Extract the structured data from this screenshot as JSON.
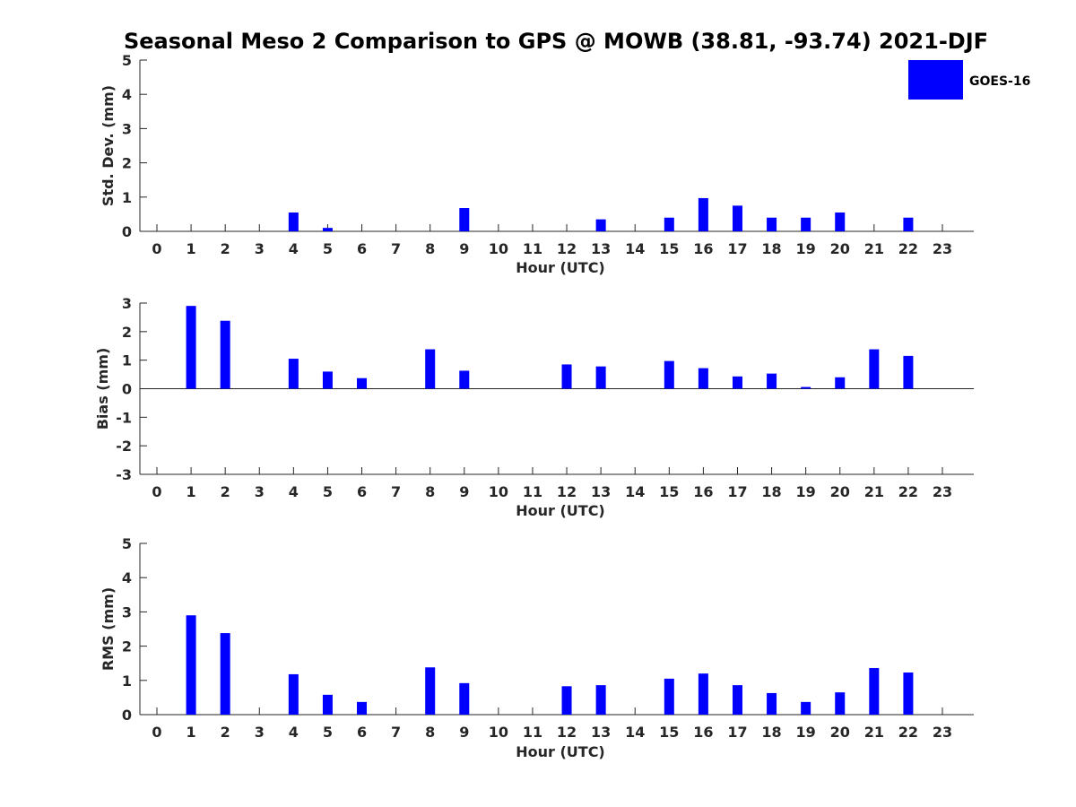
{
  "figure_title": "Seasonal Meso 2 Comparison to GPS @ MOWB (38.81, -93.74) 2021-DJF",
  "legend": {
    "label": "GOES-16",
    "color": "#0000ff"
  },
  "chart_data": [
    {
      "type": "bar",
      "xlabel": "Hour (UTC)",
      "ylabel": "Std. Dev. (mm)",
      "categories": [
        "0",
        "1",
        "2",
        "3",
        "4",
        "5",
        "6",
        "7",
        "8",
        "9",
        "10",
        "11",
        "12",
        "13",
        "14",
        "15",
        "16",
        "17",
        "18",
        "19",
        "20",
        "21",
        "22",
        "23"
      ],
      "ylim": [
        0,
        5
      ],
      "yticks": [
        0,
        1,
        2,
        3,
        4,
        5
      ],
      "series": [
        {
          "name": "GOES-16",
          "color": "#0000ff",
          "values": [
            null,
            null,
            null,
            null,
            0.55,
            0.1,
            null,
            null,
            null,
            0.68,
            null,
            null,
            null,
            0.35,
            null,
            0.4,
            0.97,
            0.75,
            0.4,
            0.4,
            0.55,
            null,
            0.4,
            null
          ]
        }
      ]
    },
    {
      "type": "bar",
      "xlabel": "Hour (UTC)",
      "ylabel": "Bias (mm)",
      "categories": [
        "0",
        "1",
        "2",
        "3",
        "4",
        "5",
        "6",
        "7",
        "8",
        "9",
        "10",
        "11",
        "12",
        "13",
        "14",
        "15",
        "16",
        "17",
        "18",
        "19",
        "20",
        "21",
        "22",
        "23"
      ],
      "ylim": [
        -3,
        3
      ],
      "yticks": [
        -3,
        -2,
        -1,
        0,
        1,
        2,
        3
      ],
      "series": [
        {
          "name": "GOES-16",
          "color": "#0000ff",
          "values": [
            null,
            2.9,
            2.38,
            null,
            1.05,
            0.6,
            0.37,
            null,
            1.38,
            0.63,
            null,
            null,
            0.85,
            0.78,
            null,
            0.97,
            0.72,
            0.43,
            0.53,
            0.06,
            0.4,
            1.38,
            1.15,
            null
          ]
        }
      ]
    },
    {
      "type": "bar",
      "xlabel": "Hour (UTC)",
      "ylabel": "RMS (mm)",
      "categories": [
        "0",
        "1",
        "2",
        "3",
        "4",
        "5",
        "6",
        "7",
        "8",
        "9",
        "10",
        "11",
        "12",
        "13",
        "14",
        "15",
        "16",
        "17",
        "18",
        "19",
        "20",
        "21",
        "22",
        "23"
      ],
      "ylim": [
        0,
        5
      ],
      "yticks": [
        0,
        1,
        2,
        3,
        4,
        5
      ],
      "series": [
        {
          "name": "GOES-16",
          "color": "#0000ff",
          "values": [
            null,
            2.9,
            2.38,
            null,
            1.18,
            0.58,
            0.37,
            null,
            1.38,
            0.92,
            null,
            null,
            0.83,
            0.86,
            null,
            1.05,
            1.2,
            0.86,
            0.63,
            0.37,
            0.65,
            1.36,
            1.23,
            null
          ]
        }
      ]
    }
  ]
}
